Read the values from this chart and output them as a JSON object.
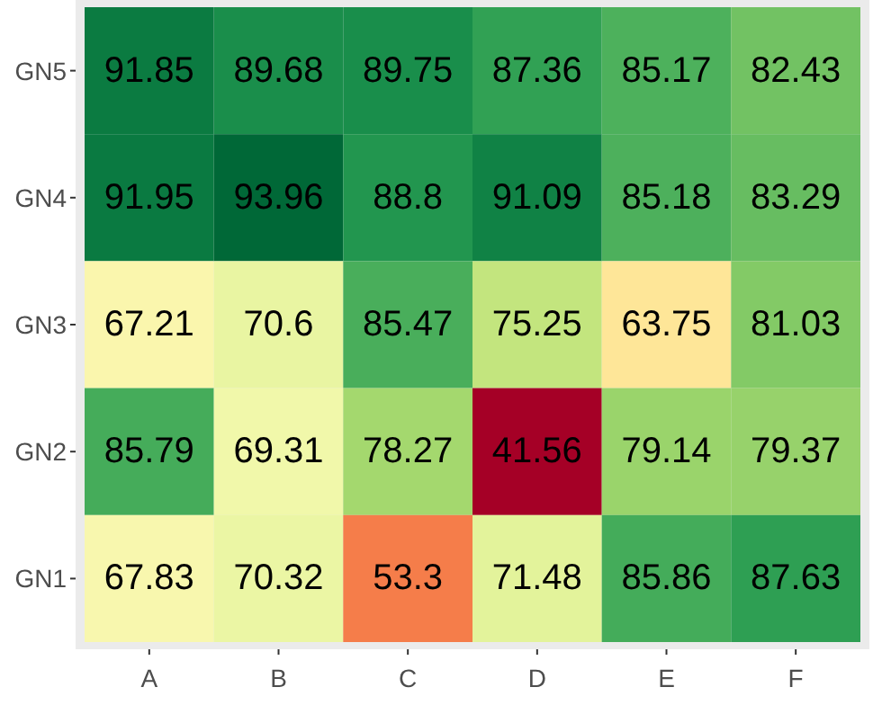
{
  "chart_data": {
    "type": "heatmap",
    "categories": [
      "A",
      "B",
      "C",
      "D",
      "E",
      "F"
    ],
    "y_categories": [
      "GN5",
      "GN4",
      "GN3",
      "GN2",
      "GN1"
    ],
    "cells": [
      [
        91.85,
        89.68,
        89.75,
        87.36,
        85.17,
        82.43
      ],
      [
        91.95,
        93.96,
        88.8,
        91.09,
        85.18,
        83.29
      ],
      [
        67.21,
        70.6,
        85.47,
        75.25,
        63.75,
        81.03
      ],
      [
        85.79,
        69.31,
        78.27,
        41.56,
        79.14,
        79.37
      ],
      [
        67.83,
        70.32,
        53.3,
        71.48,
        85.86,
        87.63
      ]
    ],
    "data_labels": true
  }
}
